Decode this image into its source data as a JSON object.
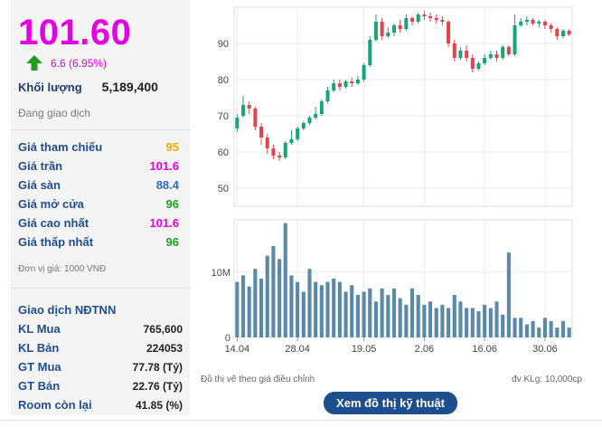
{
  "quote": {
    "price": "101.60",
    "change": "6.6 (6.95%)",
    "volume_label": "Khối lượng",
    "volume_value": "5,189,400",
    "status": "Đang giao dịch",
    "colors": {
      "ceiling": "#e200e2",
      "reference": "#f0a800",
      "floor": "#2a6db8",
      "up": "#1e9e1e"
    }
  },
  "prices": [
    {
      "label": "Giá tham chiếu",
      "value": "95",
      "color": "#f0a800"
    },
    {
      "label": "Giá trần",
      "value": "101.6",
      "color": "#e200e2"
    },
    {
      "label": "Giá sàn",
      "value": "88.4",
      "color": "#2a6db8"
    },
    {
      "label": "Giá mở cửa",
      "value": "96",
      "color": "#1e9e1e"
    },
    {
      "label": "Giá cao nhất",
      "value": "101.6",
      "color": "#e200e2"
    },
    {
      "label": "Giá thấp nhất",
      "value": "96",
      "color": "#1e9e1e"
    }
  ],
  "unit_note": "Đơn vị giá: 1000 VNĐ",
  "foreign": {
    "title": "Giao dịch NĐTNN",
    "rows": [
      {
        "label": "KL Mua",
        "value": "765,600"
      },
      {
        "label": "KL Bán",
        "value": "224053"
      },
      {
        "label": "GT Mua",
        "value": "77.78 (Tỷ)"
      },
      {
        "label": "GT Bán",
        "value": "22.76 (Tỷ)"
      },
      {
        "label": "Room còn lại",
        "value": "41.85 (%)"
      }
    ]
  },
  "chart_note_left": "Đồ thị vẽ theo giá điều chỉnh",
  "chart_note_right": "đv KLg: 10,000cp",
  "tech_button": "Xem đồ thị kỹ thuật",
  "chart_data": {
    "type": "candlestick",
    "price_axis": {
      "ylim": [
        45,
        100
      ],
      "ticks": [
        50,
        60,
        70,
        80,
        90
      ]
    },
    "volume_axis": {
      "ylim": [
        0,
        18
      ],
      "ticks": [
        {
          "v": 0,
          "label": "0"
        },
        {
          "v": 10,
          "label": "10M"
        }
      ]
    },
    "x_tick_labels": [
      {
        "index": 0,
        "label": "14.04"
      },
      {
        "index": 10,
        "label": "28.04"
      },
      {
        "index": 21,
        "label": "19.05"
      },
      {
        "index": 31,
        "label": "2.06"
      },
      {
        "index": 41,
        "label": "16.06"
      },
      {
        "index": 51,
        "label": "30.06"
      }
    ],
    "candles": [
      {
        "o": 66.5,
        "c": 69.5,
        "h": 70.5,
        "l": 65.5,
        "v": 8.5
      },
      {
        "o": 70,
        "c": 73,
        "h": 75.5,
        "l": 69.5,
        "v": 9.5
      },
      {
        "o": 73,
        "c": 72,
        "h": 74,
        "l": 70.5,
        "v": 7.8
      },
      {
        "o": 72,
        "c": 67,
        "h": 72.5,
        "l": 66,
        "v": 10.5
      },
      {
        "o": 67,
        "c": 64,
        "h": 68,
        "l": 62,
        "v": 9
      },
      {
        "o": 64,
        "c": 61,
        "h": 65,
        "l": 59.5,
        "v": 12.5
      },
      {
        "o": 61,
        "c": 59,
        "h": 62,
        "l": 58,
        "v": 14
      },
      {
        "o": 59,
        "c": 58.5,
        "h": 60,
        "l": 57.5,
        "v": 12
      },
      {
        "o": 58.5,
        "c": 62.5,
        "h": 63,
        "l": 58,
        "v": 17.5
      },
      {
        "o": 62.5,
        "c": 63.5,
        "h": 66,
        "l": 62,
        "v": 9.5
      },
      {
        "o": 63.5,
        "c": 66.5,
        "h": 67,
        "l": 63,
        "v": 8.5
      },
      {
        "o": 66.5,
        "c": 68,
        "h": 68.5,
        "l": 66,
        "v": 7
      },
      {
        "o": 68,
        "c": 69.5,
        "h": 70,
        "l": 67.5,
        "v": 10.5
      },
      {
        "o": 69.5,
        "c": 70.5,
        "h": 72.5,
        "l": 69,
        "v": 8.5
      },
      {
        "o": 70.5,
        "c": 74,
        "h": 74.5,
        "l": 70,
        "v": 8
      },
      {
        "o": 74,
        "c": 77,
        "h": 78,
        "l": 73.5,
        "v": 8.5
      },
      {
        "o": 77,
        "c": 79,
        "h": 80,
        "l": 76.5,
        "v": 9
      },
      {
        "o": 79,
        "c": 78,
        "h": 80,
        "l": 77,
        "v": 8.5
      },
      {
        "o": 78,
        "c": 79.5,
        "h": 80,
        "l": 77.5,
        "v": 7
      },
      {
        "o": 79.5,
        "c": 79,
        "h": 80.5,
        "l": 78,
        "v": 8
      },
      {
        "o": 79,
        "c": 80,
        "h": 81,
        "l": 78.5,
        "v": 6.5
      },
      {
        "o": 80,
        "c": 84,
        "h": 84.5,
        "l": 79.5,
        "v": 7
      },
      {
        "o": 84,
        "c": 91,
        "h": 92,
        "l": 83.5,
        "v": 7.5
      },
      {
        "o": 91,
        "c": 96,
        "h": 98,
        "l": 90.5,
        "v": 5.5
      },
      {
        "o": 96,
        "c": 92,
        "h": 97,
        "l": 91,
        "v": 7.5
      },
      {
        "o": 92,
        "c": 93,
        "h": 94.5,
        "l": 91.5,
        "v": 6.5
      },
      {
        "o": 93,
        "c": 95,
        "h": 95.5,
        "l": 92,
        "v": 7.5
      },
      {
        "o": 95,
        "c": 94,
        "h": 96.5,
        "l": 93,
        "v": 6
      },
      {
        "o": 94,
        "c": 97,
        "h": 98,
        "l": 93.5,
        "v": 5
      },
      {
        "o": 97,
        "c": 96,
        "h": 97.5,
        "l": 95,
        "v": 7.5
      },
      {
        "o": 96,
        "c": 98,
        "h": 98.5,
        "l": 95.5,
        "v": 6.5
      },
      {
        "o": 98,
        "c": 97.5,
        "h": 99,
        "l": 96.5,
        "v": 5
      },
      {
        "o": 97.5,
        "c": 97,
        "h": 98.5,
        "l": 96,
        "v": 5.5
      },
      {
        "o": 97,
        "c": 96.5,
        "h": 98,
        "l": 95.5,
        "v": 4.5
      },
      {
        "o": 96.5,
        "c": 96,
        "h": 97.5,
        "l": 95,
        "v": 5
      },
      {
        "o": 96,
        "c": 90,
        "h": 96.5,
        "l": 89,
        "v": 4.5
      },
      {
        "o": 90,
        "c": 86,
        "h": 91,
        "l": 85,
        "v": 6.5
      },
      {
        "o": 86,
        "c": 88,
        "h": 89,
        "l": 85.5,
        "v": 5.5
      },
      {
        "o": 88,
        "c": 86,
        "h": 89.5,
        "l": 85,
        "v": 4.5
      },
      {
        "o": 86,
        "c": 83,
        "h": 87,
        "l": 82,
        "v": 4.5
      },
      {
        "o": 83,
        "c": 84.5,
        "h": 85,
        "l": 82.5,
        "v": 4
      },
      {
        "o": 84.5,
        "c": 86,
        "h": 87,
        "l": 84,
        "v": 5
      },
      {
        "o": 86,
        "c": 87,
        "h": 88,
        "l": 85.5,
        "v": 4.5
      },
      {
        "o": 87,
        "c": 86,
        "h": 88,
        "l": 85,
        "v": 5.5
      },
      {
        "o": 86,
        "c": 89,
        "h": 89.5,
        "l": 85.5,
        "v": 3.5
      },
      {
        "o": 89,
        "c": 87,
        "h": 89.5,
        "l": 86.5,
        "v": 13
      },
      {
        "o": 87,
        "c": 95,
        "h": 98,
        "l": 86.5,
        "v": 3
      },
      {
        "o": 95,
        "c": 96,
        "h": 97,
        "l": 94.5,
        "v": 3
      },
      {
        "o": 96,
        "c": 96.5,
        "h": 97.5,
        "l": 95,
        "v": 2
      },
      {
        "o": 96.5,
        "c": 95.5,
        "h": 97,
        "l": 95,
        "v": 2.5
      },
      {
        "o": 95.5,
        "c": 96,
        "h": 96.5,
        "l": 94.5,
        "v": 1.5
      },
      {
        "o": 96,
        "c": 95,
        "h": 96.5,
        "l": 94,
        "v": 3
      },
      {
        "o": 95,
        "c": 94,
        "h": 95.5,
        "l": 93,
        "v": 2.5
      },
      {
        "o": 94,
        "c": 92,
        "h": 94.5,
        "l": 91,
        "v": 1.5
      },
      {
        "o": 92,
        "c": 93.5,
        "h": 94,
        "l": 91.5,
        "v": 2.5
      },
      {
        "o": 93.5,
        "c": 92.5,
        "h": 94,
        "l": 92,
        "v": 1.5
      }
    ]
  }
}
